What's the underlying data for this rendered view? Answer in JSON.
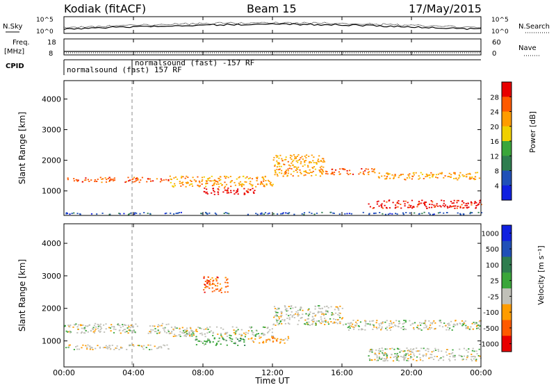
{
  "header": {
    "station": "Kodiak (fitACF)",
    "beam": "Beam 15",
    "date": "17/May/2015"
  },
  "side_labels": {
    "nsky": "N.Sky",
    "nsearch": "N.Search",
    "freq": "Freq.",
    "freq_unit": "[MHz]",
    "nave": "Nave",
    "cpid": "CPID"
  },
  "noise_panel": {
    "left_ticks": [
      "10^5",
      "10^0"
    ],
    "right_ticks": [
      "10^5",
      "10^0"
    ]
  },
  "freq_panel": {
    "left_ticks": [
      "18",
      "8"
    ],
    "right_ticks": [
      "60",
      "0"
    ]
  },
  "cpid_panel": {
    "labels": [
      "normalsound (fast) 157 RF",
      "normalsound (fast) -157 RF"
    ]
  },
  "colors": {
    "power_scale": [
      "#1020e0",
      "#2050b8",
      "#2e7d4f",
      "#3aa63a",
      "#f0d000",
      "#ff9c00",
      "#ff5a00",
      "#e80000"
    ],
    "velocity_scale": [
      "#1020e0",
      "#2050b8",
      "#2e7d4f",
      "#3aa63a",
      "#c0c0b8",
      "#ff9c00",
      "#ff5a00",
      "#e80000"
    ],
    "ground_scatter": "#c0c0b8"
  },
  "chart_data": [
    {
      "type": "heatmap",
      "id": "power",
      "ylabel": "Slant Range [km]",
      "yticks": [
        "1000",
        "2000",
        "3000",
        "4000"
      ],
      "ylim": [
        200,
        4600
      ],
      "xlim_hours": [
        0,
        24
      ],
      "colorbar_label": "Power [dB]",
      "colorbar_ticks": [
        "4",
        "8",
        "12",
        "16",
        "20",
        "24",
        "28"
      ],
      "bands": [
        {
          "t": [
            0.0,
            6.0
          ],
          "r": [
            1300,
            1460
          ],
          "lvl": 6
        },
        {
          "t": [
            6.0,
            12.0
          ],
          "r": [
            1150,
            1500
          ],
          "lvl": 5
        },
        {
          "t": [
            8.0,
            11.0
          ],
          "r": [
            900,
            1120
          ],
          "lvl": 7
        },
        {
          "t": [
            12.0,
            15.0
          ],
          "r": [
            1500,
            2200
          ],
          "lvl": 5
        },
        {
          "t": [
            15.0,
            18.0
          ],
          "r": [
            1550,
            1750
          ],
          "lvl": 6
        },
        {
          "t": [
            18.0,
            24.0
          ],
          "r": [
            1380,
            1620
          ],
          "lvl": 5
        },
        {
          "t": [
            17.5,
            24.0
          ],
          "r": [
            450,
            720
          ],
          "lvl": 7
        },
        {
          "t": [
            0.0,
            24.0
          ],
          "r": [
            250,
            320
          ],
          "lvl": 1
        }
      ]
    },
    {
      "type": "heatmap",
      "id": "velocity",
      "ylabel": "Slant Range [km]",
      "yticks": [
        "1000",
        "2000",
        "3000",
        "4000"
      ],
      "ylim": [
        200,
        4600
      ],
      "xlim_hours": [
        0,
        24
      ],
      "colorbar_label": "Velocity [m s⁻¹]",
      "colorbar_ticks": [
        "1000",
        "500",
        "100",
        "25",
        "-25",
        "-100",
        "-500",
        "-1000"
      ],
      "bands": [
        {
          "t": [
            0.0,
            6.0
          ],
          "r": [
            1250,
            1550
          ],
          "lvl": 4
        },
        {
          "t": [
            0.0,
            6.0
          ],
          "r": [
            750,
            900
          ],
          "lvl": 4
        },
        {
          "t": [
            6.0,
            12.0
          ],
          "r": [
            1150,
            1450
          ],
          "lvl": 4
        },
        {
          "t": [
            7.5,
            10.5
          ],
          "r": [
            880,
            1120
          ],
          "lvl": 3
        },
        {
          "t": [
            10.5,
            13.0
          ],
          "r": [
            950,
            1150
          ],
          "lvl": 5
        },
        {
          "t": [
            12.0,
            16.0
          ],
          "r": [
            1500,
            2100
          ],
          "lvl": 4
        },
        {
          "t": [
            16.0,
            24.0
          ],
          "r": [
            1350,
            1650
          ],
          "lvl": 4
        },
        {
          "t": [
            17.5,
            24.0
          ],
          "r": [
            400,
            800
          ],
          "lvl": 4
        },
        {
          "t": [
            8.0,
            9.5
          ],
          "r": [
            2500,
            3000
          ],
          "lvl": 6
        }
      ]
    }
  ],
  "xaxis": {
    "ticks": [
      "00:00",
      "04:00",
      "08:00",
      "12:00",
      "16:00",
      "20:00",
      "00:00"
    ],
    "label": "Time UT"
  }
}
